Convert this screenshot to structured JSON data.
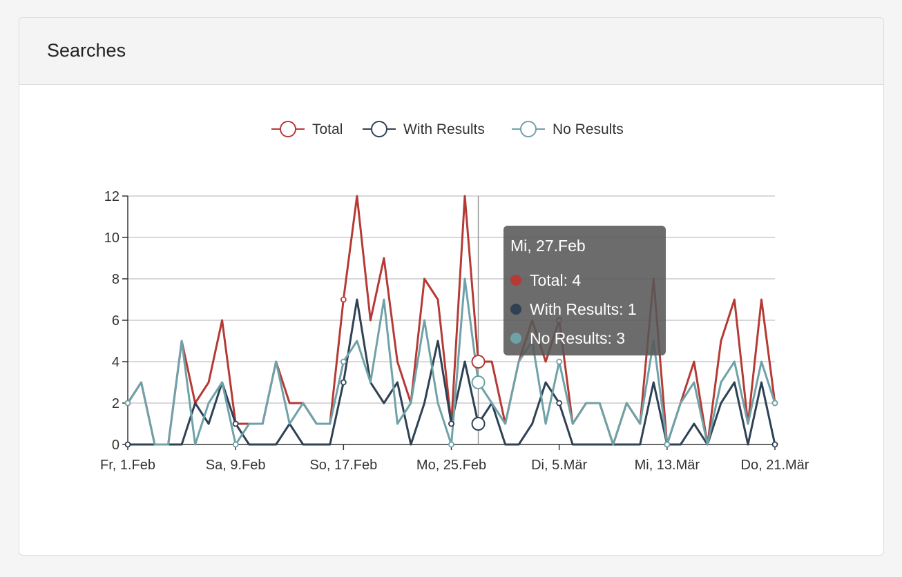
{
  "panel": {
    "title": "Searches"
  },
  "colors": {
    "total": "#b53a35",
    "with_results": "#2f4154",
    "no_results": "#6fa2a8"
  },
  "chart_data": {
    "type": "line",
    "title": "",
    "xlabel": "",
    "ylabel": "",
    "ylim": [
      0,
      12
    ],
    "yticks": [
      0,
      2,
      4,
      6,
      8,
      10,
      12
    ],
    "grid": true,
    "legend_position": "top-center",
    "x": [
      "2019-02-01",
      "2019-02-02",
      "2019-02-03",
      "2019-02-04",
      "2019-02-05",
      "2019-02-06",
      "2019-02-07",
      "2019-02-08",
      "2019-02-09",
      "2019-02-10",
      "2019-02-11",
      "2019-02-12",
      "2019-02-13",
      "2019-02-14",
      "2019-02-15",
      "2019-02-16",
      "2019-02-17",
      "2019-02-18",
      "2019-02-19",
      "2019-02-20",
      "2019-02-21",
      "2019-02-22",
      "2019-02-23",
      "2019-02-24",
      "2019-02-25",
      "2019-02-26",
      "2019-02-27",
      "2019-02-28",
      "2019-03-01",
      "2019-03-02",
      "2019-03-03",
      "2019-03-04",
      "2019-03-05",
      "2019-03-06",
      "2019-03-07",
      "2019-03-08",
      "2019-03-09",
      "2019-03-10",
      "2019-03-11",
      "2019-03-12",
      "2019-03-13",
      "2019-03-14",
      "2019-03-15",
      "2019-03-16",
      "2019-03-17",
      "2019-03-18",
      "2019-03-19",
      "2019-03-20",
      "2019-03-21"
    ],
    "x_tick_labels": [
      "Fr,  1.Feb",
      "Sa,  9.Feb",
      "So, 17.Feb",
      "Mo, 25.Feb",
      "Di,  5.Mär",
      "Mi, 13.Mär",
      "Do, 21.Mär"
    ],
    "series": [
      {
        "name": "Total",
        "color": "#b53a35",
        "values": [
          2,
          3,
          0,
          0,
          5,
          2,
          3,
          6,
          1,
          1,
          1,
          4,
          2,
          2,
          1,
          1,
          7,
          12,
          6,
          9,
          4,
          2,
          8,
          7,
          1,
          12,
          4,
          4,
          1,
          4,
          6,
          4,
          6,
          1,
          2,
          2,
          0,
          2,
          1,
          8,
          0,
          2,
          4,
          0,
          5,
          7,
          1,
          7,
          2
        ]
      },
      {
        "name": "With Results",
        "color": "#2f4154",
        "values": [
          0,
          0,
          0,
          0,
          0,
          2,
          1,
          3,
          1,
          0,
          0,
          0,
          1,
          0,
          0,
          0,
          3,
          7,
          3,
          2,
          3,
          0,
          2,
          5,
          1,
          4,
          1,
          2,
          0,
          0,
          1,
          3,
          2,
          0,
          0,
          0,
          0,
          0,
          0,
          3,
          0,
          0,
          1,
          0,
          2,
          3,
          0,
          3,
          0
        ]
      },
      {
        "name": "No Results",
        "color": "#6fa2a8",
        "values": [
          2,
          3,
          0,
          0,
          5,
          0,
          2,
          3,
          0,
          1,
          1,
          4,
          1,
          2,
          1,
          1,
          4,
          5,
          3,
          7,
          1,
          2,
          6,
          2,
          0,
          8,
          3,
          2,
          1,
          4,
          5,
          1,
          4,
          1,
          2,
          2,
          0,
          2,
          1,
          5,
          0,
          2,
          3,
          0,
          3,
          4,
          1,
          4,
          2
        ]
      }
    ],
    "tooltip": {
      "date": "Mi, 27.Feb",
      "rows": [
        {
          "label": "Total: 4",
          "color": "#b53a35"
        },
        {
          "label": "With Results: 1",
          "color": "#2f4154"
        },
        {
          "label": "No Results: 3",
          "color": "#6fa2a8"
        }
      ],
      "index": 26
    }
  }
}
